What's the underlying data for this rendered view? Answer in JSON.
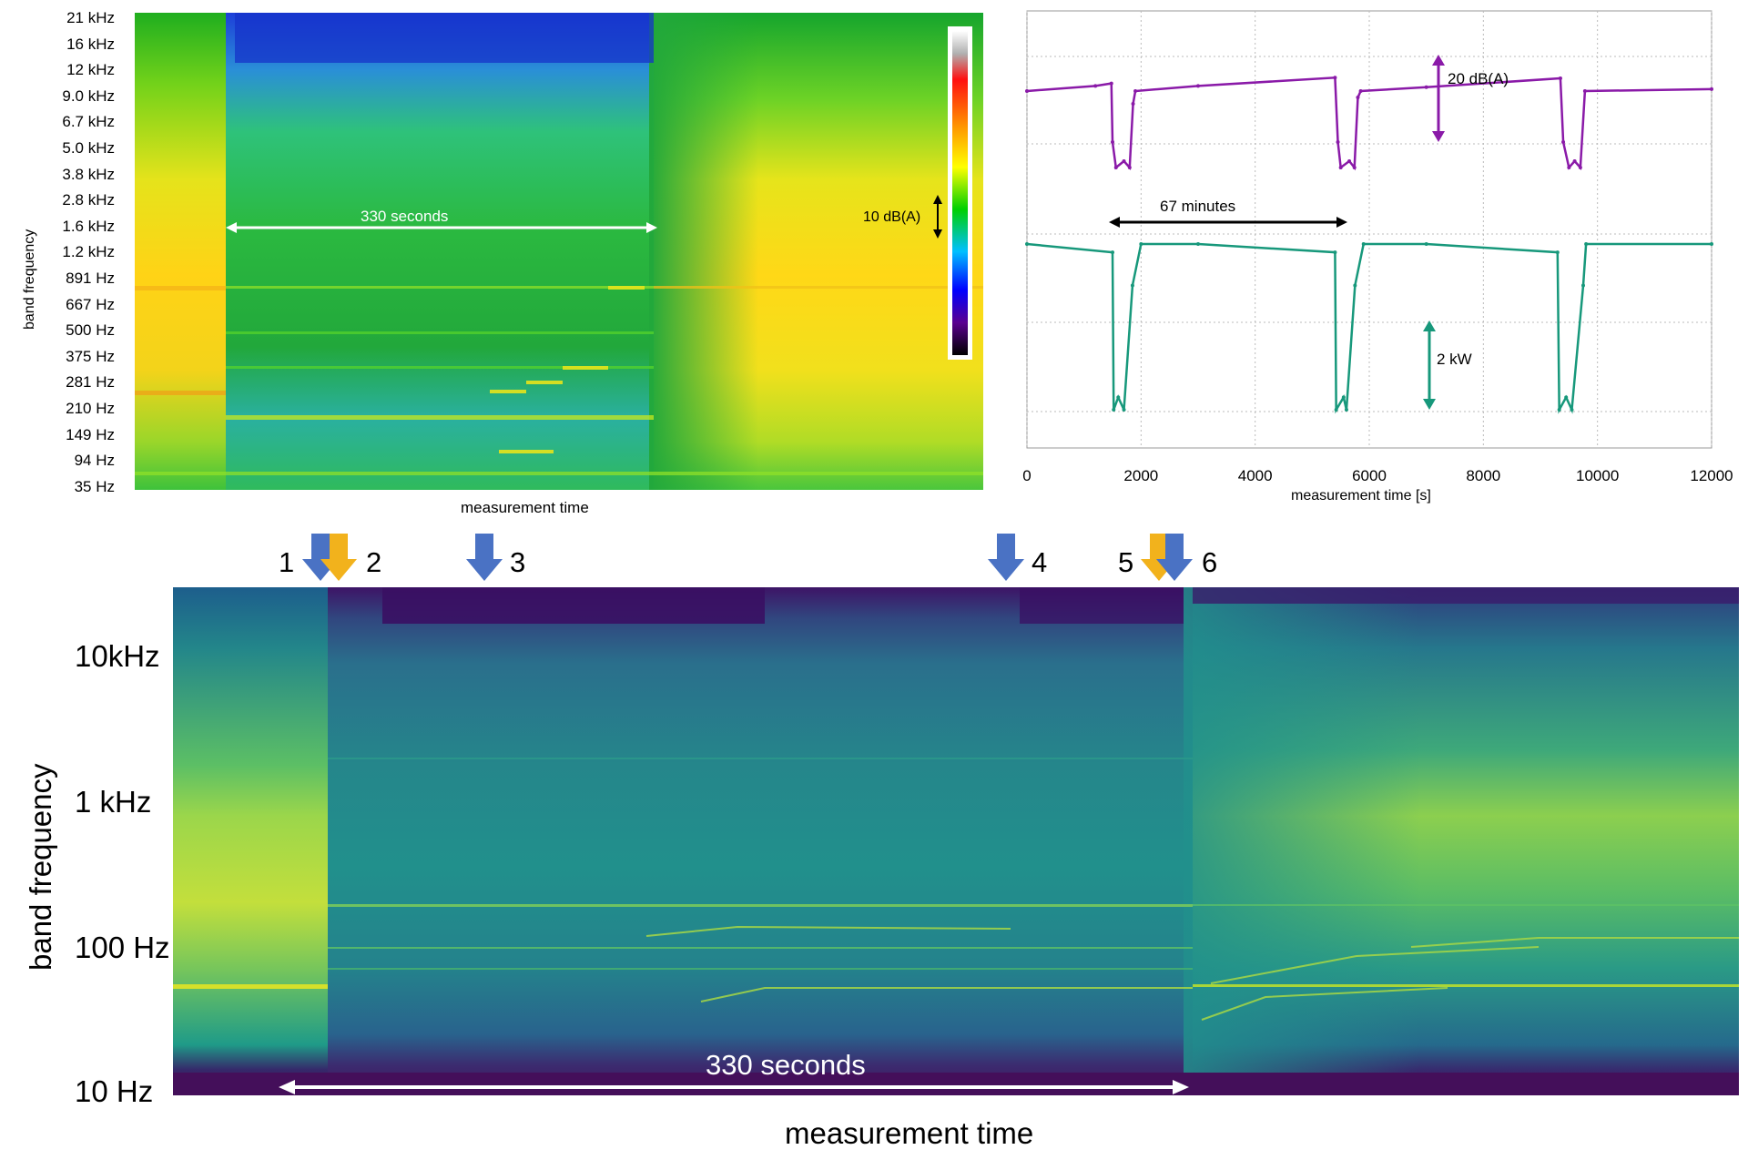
{
  "chart_data": [
    {
      "type": "heatmap",
      "ylabel": "band frequency",
      "xlabel": "measurement time",
      "yticks": [
        "21 kHz",
        "16 kHz",
        "12 kHz",
        "9.0 kHz",
        "6.7 kHz",
        "5.0 kHz",
        "3.8 kHz",
        "2.8 kHz",
        "1.6 kHz",
        "1.2 kHz",
        "891 Hz",
        "667 Hz",
        "500 Hz",
        "375 Hz",
        "281 Hz",
        "210 Hz",
        "149 Hz",
        "94 Hz",
        "35 Hz"
      ],
      "annotations": [
        "330 seconds",
        "10 dB(A)"
      ],
      "colormap": [
        "#ffffff",
        "#c0c0c0",
        "#ff0000",
        "#ff9900",
        "#ffff00",
        "#00d000",
        "#00c0ff",
        "#0000ff",
        "#500090",
        "#000000"
      ]
    },
    {
      "type": "line",
      "xlabel": "measurement time [s]",
      "xlim": [
        0,
        12000
      ],
      "xticks": [
        0,
        2000,
        4000,
        6000,
        8000,
        10000,
        12000
      ],
      "annotations": [
        "20 dB(A)",
        "67 minutes",
        "2 kW"
      ],
      "series": [
        {
          "color": "#8a1aa8",
          "points": [
            [
              0,
              20
            ],
            [
              1200,
              20.8
            ],
            [
              1480,
              21.2
            ],
            [
              1500,
              12
            ],
            [
              1560,
              8
            ],
            [
              1700,
              9
            ],
            [
              1800,
              8
            ],
            [
              1860,
              18
            ],
            [
              1900,
              20
            ],
            [
              3000,
              20.8
            ],
            [
              5400,
              22.1
            ],
            [
              5450,
              12
            ],
            [
              5500,
              8
            ],
            [
              5650,
              9
            ],
            [
              5740,
              8
            ],
            [
              5800,
              19
            ],
            [
              5850,
              20
            ],
            [
              7000,
              20.6
            ],
            [
              9350,
              22
            ],
            [
              9400,
              12
            ],
            [
              9500,
              8
            ],
            [
              9600,
              9
            ],
            [
              9700,
              8
            ],
            [
              9780,
              20
            ],
            [
              12000,
              20.3
            ]
          ]
        },
        {
          "color": "#17987b",
          "points": [
            [
              0,
              4
            ],
            [
              1500,
              3.8
            ],
            [
              1520,
              0
            ],
            [
              1600,
              0.3
            ],
            [
              1700,
              0
            ],
            [
              1850,
              3
            ],
            [
              2000,
              4
            ],
            [
              3000,
              4
            ],
            [
              5400,
              3.8
            ],
            [
              5420,
              0
            ],
            [
              5550,
              0.3
            ],
            [
              5600,
              0
            ],
            [
              5750,
              3
            ],
            [
              5900,
              4
            ],
            [
              7000,
              4
            ],
            [
              9300,
              3.8
            ],
            [
              9330,
              0
            ],
            [
              9450,
              0.3
            ],
            [
              9550,
              0
            ],
            [
              9750,
              3
            ],
            [
              9800,
              4
            ],
            [
              12000,
              4
            ]
          ]
        }
      ]
    },
    {
      "type": "heatmap",
      "ylabel": "band frequency",
      "xlabel": "measurement time",
      "yticks": [
        "10kHz",
        "1 kHz",
        "100 Hz",
        "10 Hz"
      ],
      "events": [
        {
          "label": "1",
          "color": "#4a72c4"
        },
        {
          "label": "2",
          "color": "#f2b21c"
        },
        {
          "label": "3",
          "color": "#4a72c4"
        },
        {
          "label": "4",
          "color": "#4a72c4"
        },
        {
          "label": "5",
          "color": "#f2b21c"
        },
        {
          "label": "6",
          "color": "#4a72c4"
        }
      ],
      "annotations": [
        "330 seconds"
      ]
    }
  ]
}
